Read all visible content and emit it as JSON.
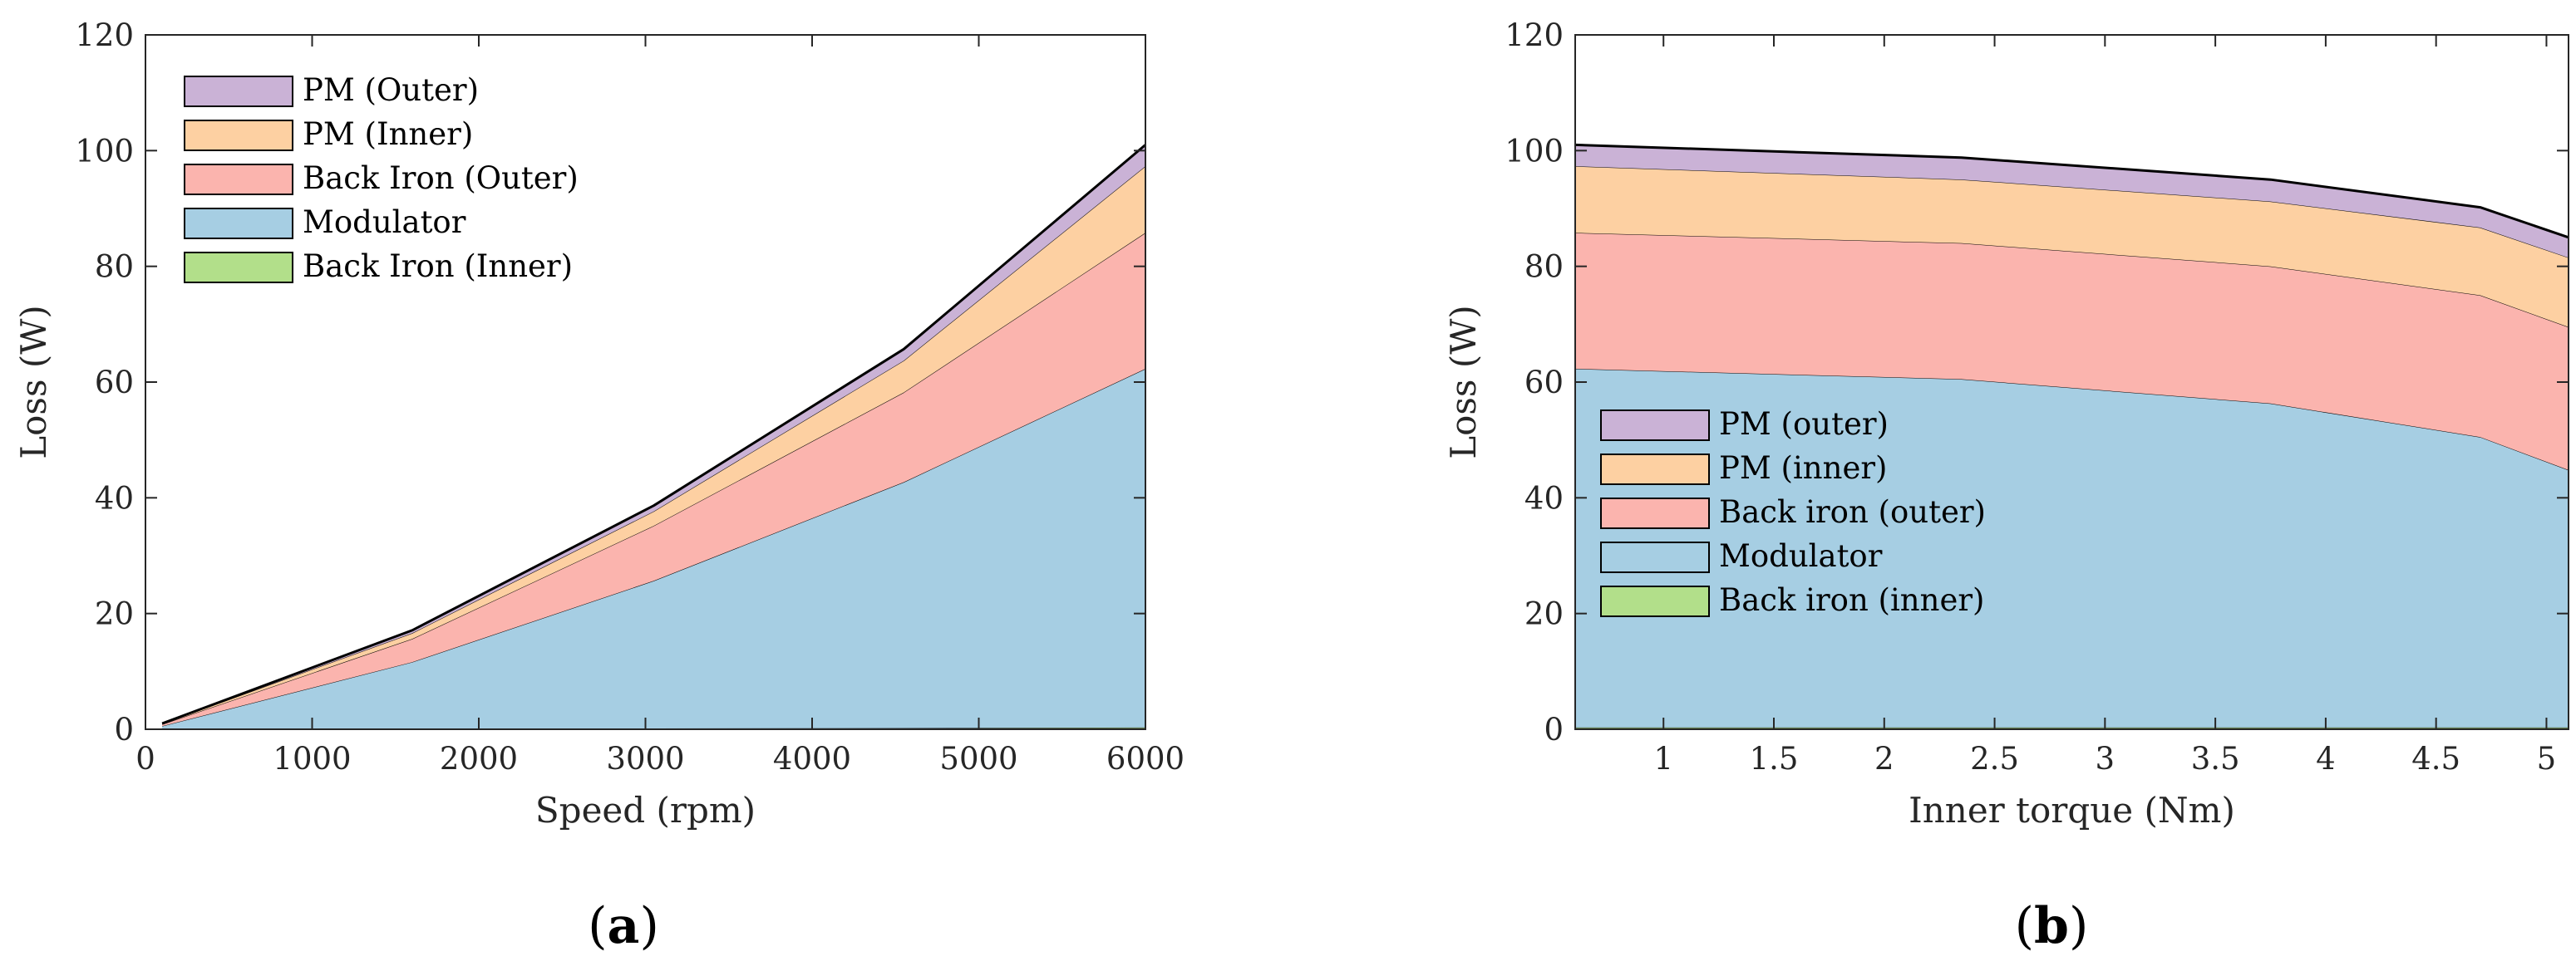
{
  "chart_data": [
    {
      "type": "area",
      "stacked": true,
      "panel_label": "a",
      "xlabel": "Speed (rpm)",
      "ylabel": "Loss (W)",
      "xlim": [
        0,
        6000
      ],
      "ylim": [
        0,
        120
      ],
      "xticks": [
        "0",
        "1000",
        "2000",
        "3000",
        "4000",
        "5000",
        "6000"
      ],
      "yticks": [
        "0",
        "20",
        "40",
        "60",
        "80",
        "100",
        "120"
      ],
      "legend_position": "top-left",
      "x": [
        100,
        1600,
        3050,
        4550,
        6000
      ],
      "series": [
        {
          "name": "Back Iron (Inner)",
          "color": "#b2df8a",
          "values": [
            0.05,
            0.1,
            0.15,
            0.2,
            0.3
          ]
        },
        {
          "name": "Modulator",
          "color": "#a6cee3",
          "values": [
            0.5,
            11.5,
            25.5,
            42.5,
            62.0
          ]
        },
        {
          "name": "Back Iron (Outer)",
          "color": "#fbb4ae",
          "values": [
            0.3,
            4.0,
            9.5,
            15.5,
            23.5
          ]
        },
        {
          "name": "PM (Inner)",
          "color": "#fdd0a2",
          "values": [
            0.1,
            1.0,
            2.5,
            5.5,
            11.5
          ]
        },
        {
          "name": "PM (Outer)",
          "color": "#cab2d6",
          "values": [
            0.05,
            0.5,
            1.0,
            2.0,
            3.7
          ]
        }
      ]
    },
    {
      "type": "area",
      "stacked": true,
      "panel_label": "b",
      "xlabel": "Inner torque (Nm)",
      "ylabel": "Loss (W)",
      "xlim": [
        0.6,
        5.1
      ],
      "ylim": [
        0,
        120
      ],
      "xticks": [
        "1",
        "1.5",
        "2",
        "2.5",
        "3",
        "3.5",
        "4",
        "4.5",
        "5"
      ],
      "yticks": [
        "0",
        "20",
        "40",
        "60",
        "80",
        "100",
        "120"
      ],
      "legend_position": "middle-left",
      "x": [
        0.6,
        2.35,
        3.75,
        4.7,
        5.1
      ],
      "series": [
        {
          "name": "Back iron (inner)",
          "color": "#b2df8a",
          "values": [
            0.3,
            0.3,
            0.3,
            0.3,
            0.3
          ]
        },
        {
          "name": "Modulator",
          "color": "#a6cee3",
          "values": [
            62.0,
            60.2,
            56.0,
            50.2,
            44.5
          ]
        },
        {
          "name": "Back iron (outer)",
          "color": "#fbb4ae",
          "values": [
            23.5,
            23.5,
            23.7,
            24.5,
            24.7
          ]
        },
        {
          "name": "PM (inner)",
          "color": "#fdd0a2",
          "values": [
            11.5,
            11.0,
            11.2,
            11.7,
            12.0
          ]
        },
        {
          "name": "PM (outer)",
          "color": "#cab2d6",
          "values": [
            3.7,
            3.8,
            3.8,
            3.5,
            3.5
          ]
        }
      ]
    }
  ]
}
